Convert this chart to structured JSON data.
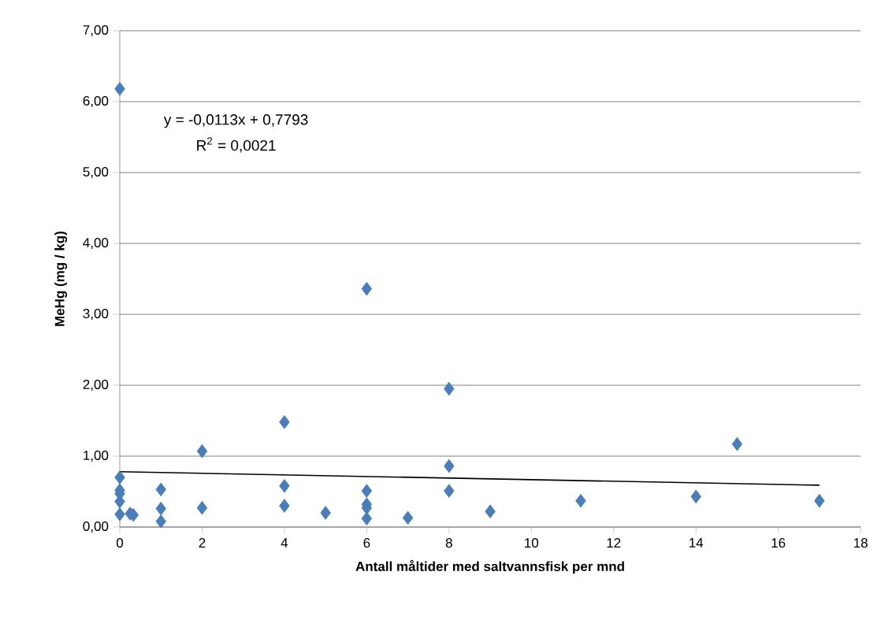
{
  "chart_data": {
    "type": "scatter",
    "xlabel": "Antall måltider med saltvannsfisk per mnd",
    "ylabel": "MeHg (mg / kg)",
    "series": [
      {
        "color": "#4a7ebb",
        "marker": "diamond",
        "x": [
          0,
          0,
          0,
          0,
          0,
          0,
          0.25,
          0.33,
          1,
          1,
          1,
          2,
          2,
          4,
          4,
          4,
          5,
          6,
          6,
          6,
          6,
          6,
          7,
          8,
          8,
          8,
          9,
          11.2,
          14,
          15,
          17
        ],
        "values": [
          6.18,
          0.7,
          0.52,
          0.47,
          0.36,
          0.18,
          0.19,
          0.17,
          0.53,
          0.26,
          0.08,
          1.07,
          0.27,
          1.48,
          0.58,
          0.3,
          0.2,
          3.36,
          0.51,
          0.32,
          0.27,
          0.12,
          0.13,
          1.95,
          0.86,
          0.51,
          0.22,
          0.37,
          0.43,
          1.17,
          0.37
        ]
      },
      {
        "type": "line",
        "color": "#000000",
        "marker": "none",
        "x": [
          0,
          17
        ],
        "values": [
          0.78,
          0.59
        ]
      }
    ],
    "annotations": [
      "y = -0,0113x + 0,7793",
      "R$^{2}$ = 0,0021"
    ],
    "xlim": [
      0,
      18
    ],
    "xticks": [
      0,
      2,
      4,
      6,
      8,
      10,
      12,
      14,
      16,
      18
    ],
    "ylim": [
      0,
      7
    ],
    "yticks": [
      {
        "value": 0,
        "label": "0,00"
      },
      {
        "value": 1,
        "label": "1,00"
      },
      {
        "value": 2,
        "label": "2,00"
      },
      {
        "value": 3,
        "label": "3,00"
      },
      {
        "value": 4,
        "label": "4,00"
      },
      {
        "value": 5,
        "label": "5,00"
      },
      {
        "value": 6,
        "label": "6,00"
      },
      {
        "value": 7,
        "label": "7,00"
      }
    ],
    "grid": "y"
  }
}
